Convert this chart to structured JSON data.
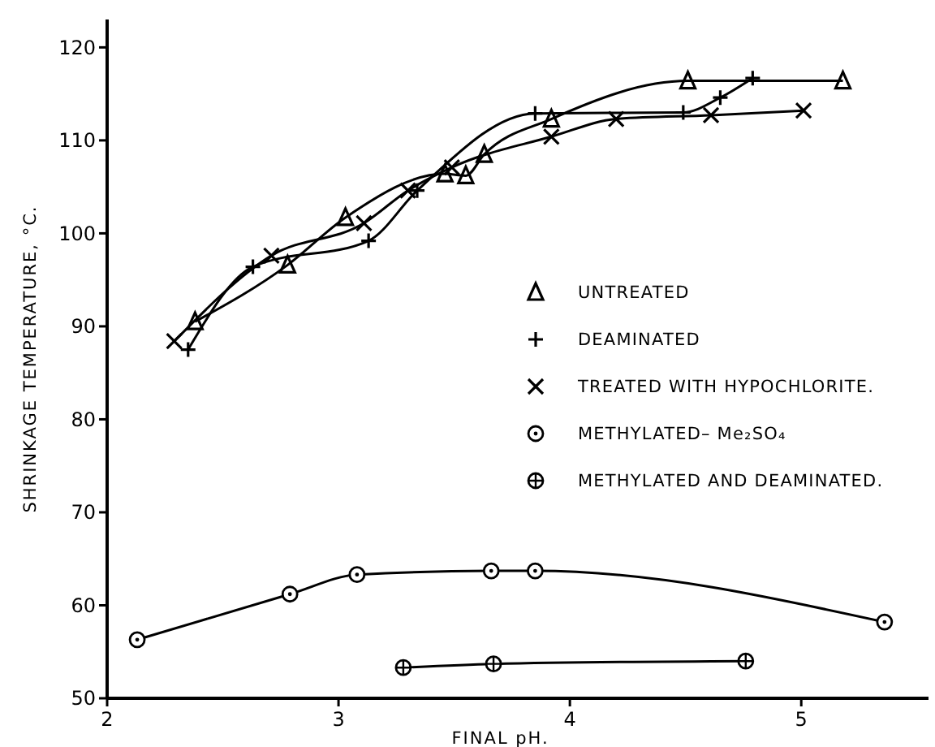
{
  "chart_data": {
    "type": "line",
    "xlabel": "FINAL pH.",
    "ylabel": "SHRINKAGE TEMPERATURE, °C.",
    "xlim": [
      2,
      5.55
    ],
    "ylim": [
      50,
      123
    ],
    "xticks": [
      2,
      3,
      4,
      5
    ],
    "yticks": [
      50,
      60,
      70,
      80,
      90,
      100,
      110,
      120
    ],
    "grid": false,
    "legend": "right",
    "line_style": "solid",
    "series": [
      {
        "name": "UNTREATED",
        "color": "#000000",
        "marker": "triangle",
        "x": [
          2.38,
          2.78,
          3.03,
          3.46,
          3.55,
          3.63,
          3.92,
          4.51,
          5.18
        ],
        "values": [
          90.5,
          96.6,
          101.7,
          106.4,
          106.2,
          108.5,
          112.3,
          116.4,
          116.4
        ]
      },
      {
        "name": "DEAMINATED",
        "color": "#000000",
        "marker": "cross",
        "x": [
          2.35,
          2.63,
          3.13,
          3.34,
          3.85,
          4.49,
          4.65,
          4.79
        ],
        "values": [
          87.5,
          96.4,
          99.2,
          104.6,
          112.9,
          113,
          114.6,
          116.7
        ]
      },
      {
        "name": "TREATED WITH HYPOCHLORITE.",
        "color": "#000000",
        "marker": "x",
        "x": [
          2.29,
          2.71,
          3.11,
          3.3,
          3.49,
          3.92,
          4.2,
          4.61,
          5.01
        ],
        "values": [
          88.4,
          97.6,
          101.1,
          104.6,
          107.1,
          110.4,
          112.3,
          112.7,
          113.2
        ]
      },
      {
        "name": "METHYLATED– Me₂SO₄",
        "color": "#000000",
        "marker": "circle-dot",
        "x": [
          2.13,
          2.79,
          3.08,
          3.66,
          3.85,
          5.36
        ],
        "values": [
          56.3,
          61.2,
          63.3,
          63.7,
          63.7,
          58.2
        ]
      },
      {
        "name": "METHYLATED AND DEAMINATED.",
        "color": "#000000",
        "marker": "circle-cross",
        "x": [
          3.28,
          3.67,
          4.76
        ],
        "values": [
          53.3,
          53.7,
          54
        ]
      }
    ]
  }
}
